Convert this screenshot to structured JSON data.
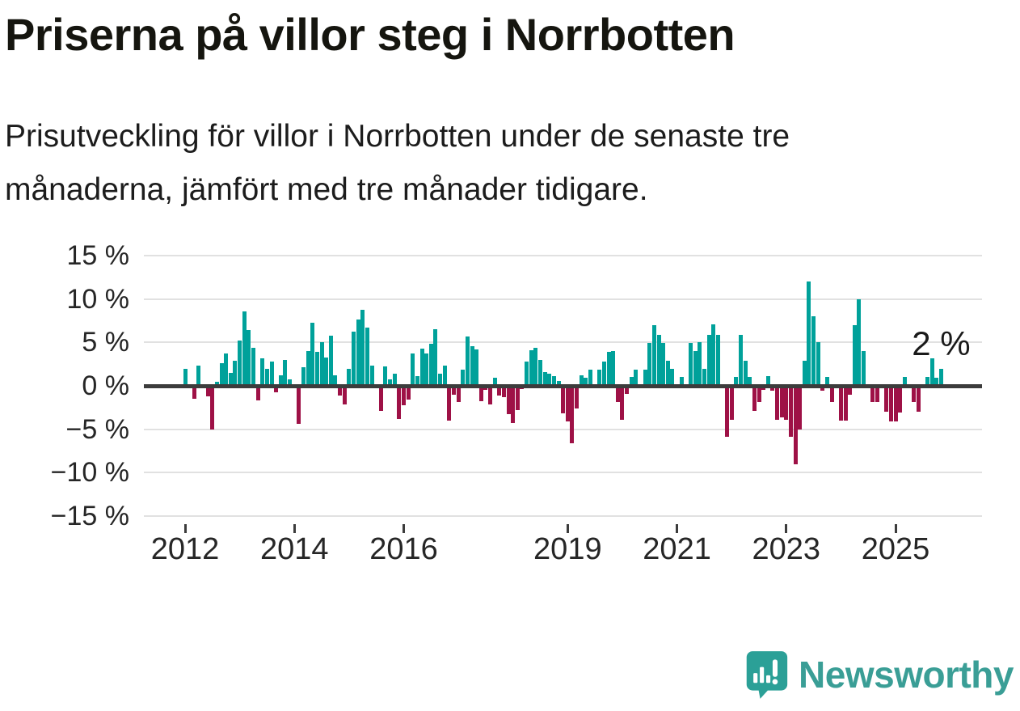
{
  "header": {
    "title": "Priserna på villor steg i Norrbotten",
    "subtitle_lines": [
      "Prisutveckling för villor i Norrbotten under de senaste tre",
      "månaderna, jämfört med tre månader tidigare."
    ]
  },
  "colors": {
    "positive_bar": "#00a19a",
    "negative_bar": "#9e1146",
    "baseline": "#3c3c3c",
    "gridline": "#e1e1e1",
    "text": "#1c1c1c",
    "logo_teal": "#3a9e96"
  },
  "annotation": {
    "last_value_label": "2 %"
  },
  "logo": {
    "text": "Newsworthy",
    "icon": "newsworthy-speech-bubble-bar-chart-icon"
  },
  "chart_data": {
    "type": "bar",
    "title": "Priserna på villor steg i Norrbotten",
    "unit": "%",
    "frequency": "monthly",
    "start_month": "2012-01",
    "end_month": "2025-11",
    "ylim": [
      -15,
      15
    ],
    "grid": "horizontal",
    "positive_color": "#00a19a",
    "negative_color": "#9e1146",
    "y_ticks": [
      {
        "value": 15,
        "label": "15 %"
      },
      {
        "value": 10,
        "label": "10 %"
      },
      {
        "value": 5,
        "label": "5 %"
      },
      {
        "value": 0,
        "label": "0 %"
      },
      {
        "value": -5,
        "label": "−5 %"
      },
      {
        "value": -10,
        "label": "−10 %"
      },
      {
        "value": -15,
        "label": "−15 %"
      }
    ],
    "x_ticks": [
      {
        "month_index": 0,
        "label": "2012"
      },
      {
        "month_index": 24,
        "label": "2014"
      },
      {
        "month_index": 48,
        "label": "2016"
      },
      {
        "month_index": 84,
        "label": "2019"
      },
      {
        "month_index": 108,
        "label": "2021"
      },
      {
        "month_index": 132,
        "label": "2023"
      },
      {
        "month_index": 156,
        "label": "2025"
      }
    ],
    "values": [
      2.0,
      0,
      -1.5,
      2.3,
      0,
      -1.2,
      -5.0,
      0.5,
      2.6,
      3.7,
      1.5,
      2.9,
      5.2,
      8.6,
      6.4,
      4.4,
      -1.7,
      3.2,
      2.0,
      2.8,
      -0.7,
      1.2,
      3.0,
      0.7,
      0,
      -4.4,
      2.1,
      4.0,
      7.3,
      3.9,
      5.0,
      3.3,
      5.8,
      1.2,
      -1.1,
      -2.1,
      2.0,
      6.2,
      7.6,
      8.8,
      6.7,
      2.3,
      0,
      -2.9,
      2.2,
      0.7,
      1.4,
      -3.8,
      -2.2,
      -1.6,
      3.7,
      1.1,
      4.3,
      3.7,
      4.8,
      6.5,
      1.4,
      2.3,
      -4.0,
      -1.0,
      -1.9,
      1.9,
      5.7,
      4.6,
      4.2,
      -1.8,
      -0.5,
      -2.1,
      0.9,
      -1.1,
      -1.3,
      -3.3,
      -4.3,
      -2.8,
      -0.4,
      2.8,
      4.1,
      4.4,
      3.0,
      1.6,
      1.4,
      1.1,
      0.6,
      -3.2,
      -4.1,
      -6.6,
      -2.6,
      1.2,
      0.9,
      1.9,
      0,
      1.9,
      2.8,
      3.9,
      4.0,
      -1.9,
      -3.9,
      -0.9,
      1.0,
      1.9,
      0,
      1.9,
      4.9,
      7.0,
      5.9,
      4.9,
      2.9,
      2.0,
      0,
      1.0,
      0,
      4.9,
      4.0,
      5.0,
      2.0,
      5.9,
      7.1,
      5.9,
      0,
      -5.9,
      -3.9,
      1.0,
      5.9,
      2.9,
      1.0,
      -2.9,
      -1.9,
      -0.5,
      1.1,
      -0.6,
      -3.9,
      -3.6,
      -3.9,
      -5.9,
      -9.0,
      -5.0,
      2.9,
      12.0,
      8.0,
      5.0,
      -0.6,
      1.0,
      -1.9,
      0,
      -4.0,
      -4.0,
      -1.0,
      7.0,
      10.0,
      4.0,
      0,
      -1.9,
      -1.9,
      0,
      -3.0,
      -4.1,
      -4.1,
      -3.1,
      1.0,
      0,
      -1.9,
      -3.0,
      0,
      1.0,
      3.2,
      0.9,
      2.0
    ]
  }
}
